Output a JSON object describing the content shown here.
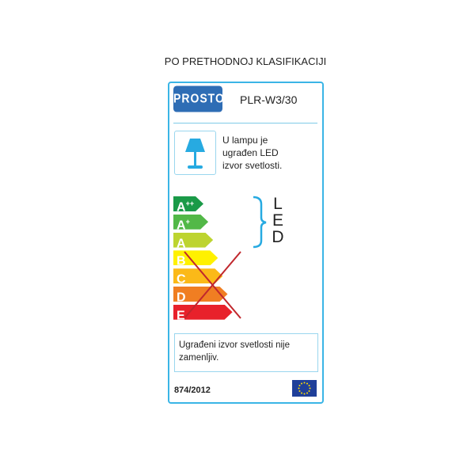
{
  "title": "PO PRETHODNOJ KLASIFIKACIJI",
  "brand": "PROSTO",
  "model": "PLR-W3/30",
  "lamp_icon": "table-lamp-icon",
  "lamp_text": "U lampu je\nugrađen LED\nizvor svetlosti.",
  "classes": [
    {
      "letter": "A",
      "sup": "++",
      "color": "#1a9a48"
    },
    {
      "letter": "A",
      "sup": "+",
      "color": "#52b847"
    },
    {
      "letter": "A",
      "sup": "",
      "color": "#bdd430"
    },
    {
      "letter": "B",
      "sup": "",
      "color": "#fff100"
    },
    {
      "letter": "C",
      "sup": "",
      "color": "#fbb918"
    },
    {
      "letter": "D",
      "sup": "",
      "color": "#f07e22"
    },
    {
      "letter": "E",
      "sup": "",
      "color": "#e8212b"
    }
  ],
  "compatible_range": "A++ to A",
  "crossed_out_range": "B to E",
  "led_label": "LED",
  "note": "Ugrađeni izvor svetlosti nije zamenljiv.",
  "regulation": "874/2012",
  "flag_icon": "eu-flag-icon",
  "accent_color": "#3ab5e6"
}
